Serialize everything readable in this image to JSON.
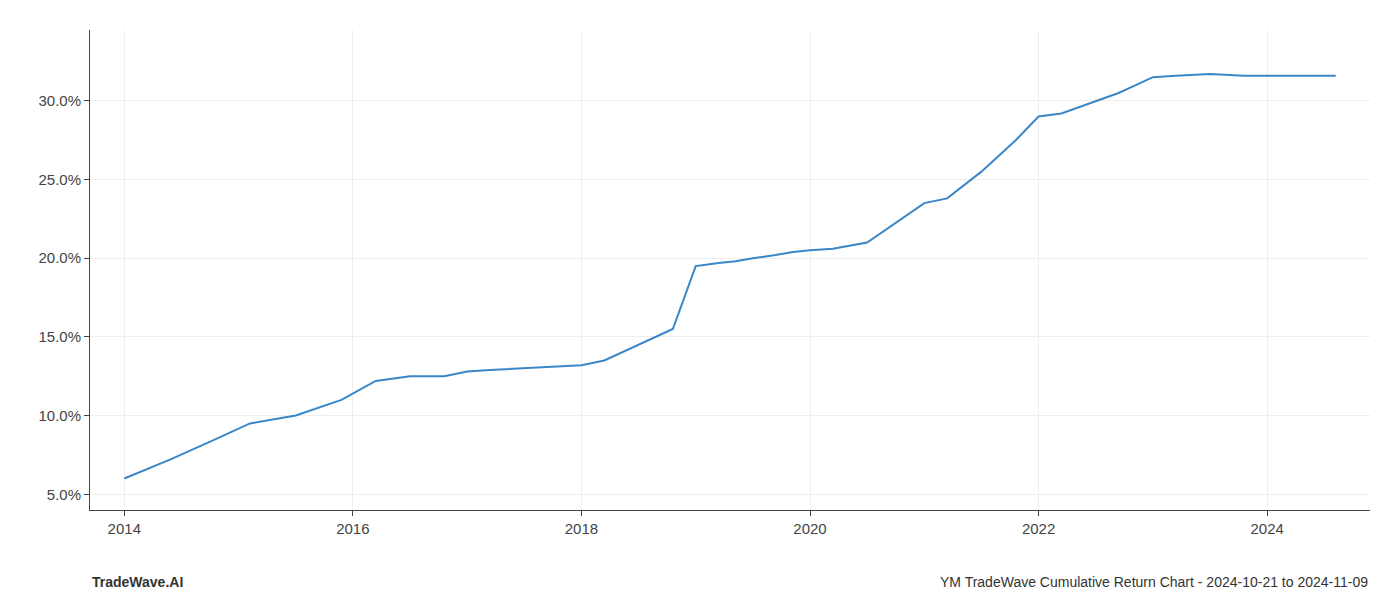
{
  "chart_data": {
    "type": "line",
    "x": [
      2014.0,
      2014.4,
      2014.8,
      2015.1,
      2015.5,
      2015.9,
      2016.2,
      2016.5,
      2016.8,
      2017.0,
      2017.2,
      2017.5,
      2017.8,
      2018.0,
      2018.2,
      2018.5,
      2018.8,
      2019.0,
      2019.2,
      2019.35,
      2019.5,
      2019.7,
      2019.85,
      2020.0,
      2020.2,
      2020.5,
      2020.8,
      2021.0,
      2021.2,
      2021.5,
      2021.8,
      2022.0,
      2022.2,
      2022.5,
      2022.7,
      2022.85,
      2023.0,
      2023.2,
      2023.5,
      2023.8,
      2024.0,
      2024.3,
      2024.6
    ],
    "values": [
      6.0,
      7.2,
      8.5,
      9.5,
      10.0,
      11.0,
      12.2,
      12.5,
      12.5,
      12.8,
      12.9,
      13.0,
      13.1,
      13.2,
      13.5,
      14.5,
      15.5,
      19.5,
      19.7,
      19.8,
      20.0,
      20.2,
      20.4,
      20.5,
      20.6,
      21.0,
      22.5,
      23.5,
      23.8,
      25.5,
      27.5,
      29.0,
      29.2,
      30.0,
      30.5,
      31.0,
      31.5,
      31.6,
      31.7,
      31.6,
      31.6,
      31.6,
      31.6
    ],
    "color": "#3a87c8",
    "xlim": [
      2013.7,
      2024.9
    ],
    "ylim": [
      4.0,
      34.5
    ],
    "xticks": [
      2014,
      2016,
      2018,
      2020,
      2022,
      2024
    ],
    "yticks": [
      {
        "value": 5.0,
        "label": "5.0%"
      },
      {
        "value": 10.0,
        "label": "10.0%"
      },
      {
        "value": 15.0,
        "label": "15.0%"
      },
      {
        "value": 20.0,
        "label": "20.0%"
      },
      {
        "value": 25.0,
        "label": "25.0%"
      },
      {
        "value": 30.0,
        "label": "30.0%"
      }
    ],
    "grid": true,
    "annotations": [
      "TradeWave.AI",
      "YM TradeWave Cumulative Return Chart - 2024-10-21 to 2024-11-09"
    ]
  }
}
